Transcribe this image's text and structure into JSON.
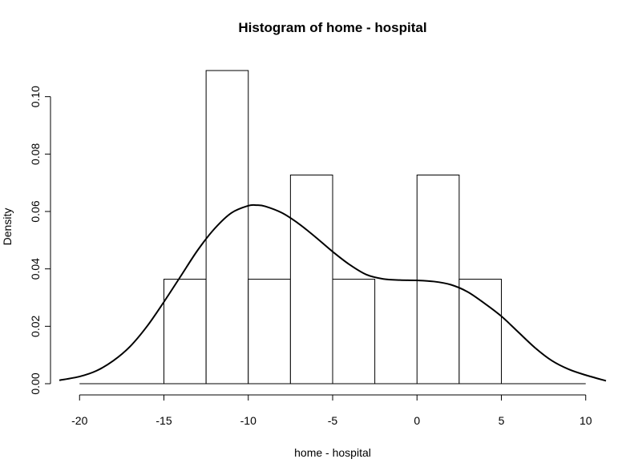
{
  "chart_data": {
    "type": "histogram",
    "title": "Histogram of home - hospital",
    "xlabel": "home - hospital",
    "ylabel": "Density",
    "xlim": [
      -21.2,
      11.2
    ],
    "ylim": [
      0,
      0.12
    ],
    "x_ticks": [
      -20,
      -15,
      -10,
      -5,
      0,
      5,
      10
    ],
    "x_tick_labels": [
      "-20",
      "-15",
      "-10",
      "-5",
      "0",
      "5",
      "10"
    ],
    "y_ticks": [
      0.0,
      0.02,
      0.04,
      0.06,
      0.08,
      0.1
    ],
    "y_tick_labels": [
      "0.00",
      "0.02",
      "0.04",
      "0.06",
      "0.08",
      "0.10"
    ],
    "bins": [
      {
        "x0": -15,
        "x1": -12.5,
        "density": 0.0364
      },
      {
        "x0": -12.5,
        "x1": -10,
        "density": 0.1091
      },
      {
        "x0": -10,
        "x1": -7.5,
        "density": 0.0364
      },
      {
        "x0": -7.5,
        "x1": -5,
        "density": 0.0727
      },
      {
        "x0": -5,
        "x1": -2.5,
        "density": 0.0364
      },
      {
        "x0": -2.5,
        "x1": 0,
        "density": 0.0
      },
      {
        "x0": 0,
        "x1": 2.5,
        "density": 0.0727
      },
      {
        "x0": 2.5,
        "x1": 5,
        "density": 0.0364
      }
    ],
    "baseline": {
      "x0": -20,
      "x1": 10
    },
    "density_curve": {
      "x": [
        -21.2,
        -20,
        -19,
        -18,
        -17,
        -16,
        -15,
        -14,
        -13,
        -12,
        -11,
        -10,
        -9.5,
        -9,
        -8,
        -7,
        -6,
        -5,
        -4,
        -3,
        -2,
        -1,
        0,
        1,
        2,
        3,
        4,
        5,
        6,
        7,
        8,
        9,
        10,
        11.2
      ],
      "y": [
        0.0012,
        0.0025,
        0.0045,
        0.008,
        0.013,
        0.02,
        0.0285,
        0.0375,
        0.0465,
        0.054,
        0.0595,
        0.062,
        0.0622,
        0.0618,
        0.0595,
        0.0557,
        0.051,
        0.046,
        0.0415,
        0.038,
        0.0365,
        0.0361,
        0.036,
        0.0356,
        0.0345,
        0.032,
        0.028,
        0.0235,
        0.018,
        0.0125,
        0.008,
        0.005,
        0.003,
        0.001
      ]
    }
  }
}
